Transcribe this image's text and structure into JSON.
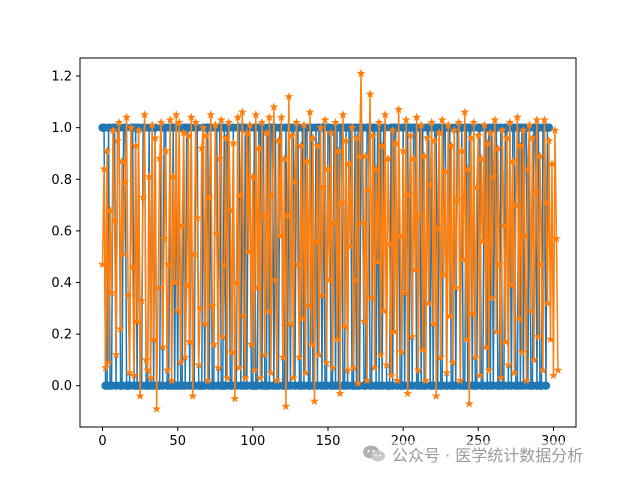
{
  "chart_data": {
    "type": "line",
    "title": "",
    "xlabel": "",
    "ylabel": "",
    "xlim": [
      -15,
      315
    ],
    "ylim": [
      -0.16,
      1.27
    ],
    "x_ticks": [
      0,
      50,
      100,
      150,
      200,
      250,
      300
    ],
    "y_ticks": [
      0.0,
      0.2,
      0.4,
      0.6,
      0.8,
      1.0,
      1.2
    ],
    "x_tick_labels": [
      "0",
      "50",
      "100",
      "150",
      "200",
      "250",
      "300"
    ],
    "y_tick_labels": [
      "0.0",
      "0.2",
      "0.4",
      "0.6",
      "0.8",
      "1.0",
      "1.2"
    ],
    "grid": false,
    "legend": "none",
    "series": [
      {
        "color": "#1f77b4",
        "marker": "circle",
        "values": [
          1,
          1,
          0,
          0,
          1,
          0,
          0,
          1,
          1,
          0,
          1,
          1,
          0,
          0,
          1,
          1,
          0,
          0,
          0,
          1,
          1,
          0,
          1,
          0,
          1,
          0,
          0,
          1,
          1,
          0,
          0,
          1,
          0,
          1,
          0,
          1,
          0,
          0,
          0,
          1,
          0,
          1,
          1,
          0,
          0,
          1,
          0,
          1,
          0,
          1,
          0,
          1,
          0,
          0,
          1,
          0,
          1,
          1,
          0,
          1,
          0,
          0,
          1,
          1,
          0,
          0,
          0,
          1,
          0,
          1,
          1,
          0,
          1,
          0,
          0,
          1,
          1,
          0,
          1,
          0,
          0,
          1,
          0,
          1,
          1,
          0,
          0,
          1,
          0,
          0,
          1,
          1,
          0,
          1,
          0,
          1,
          0,
          1,
          1,
          0,
          0,
          1,
          0,
          0,
          1,
          1,
          0,
          1,
          0,
          0,
          1,
          0,
          1,
          1,
          0,
          1,
          0,
          0,
          1,
          1,
          0,
          0,
          1,
          0,
          1,
          0,
          1,
          1,
          0,
          1,
          1,
          0,
          0,
          1,
          0,
          1,
          1,
          0,
          0,
          1,
          0,
          0,
          1,
          0,
          1,
          1,
          0,
          1,
          0,
          0,
          1,
          1,
          0,
          0,
          1,
          0,
          1,
          0,
          1,
          1,
          0,
          0,
          1,
          0,
          1,
          1,
          0,
          0,
          1,
          0,
          1,
          0,
          1,
          1,
          0,
          0,
          1,
          1,
          0,
          0,
          1,
          1,
          0,
          1,
          0,
          1,
          0,
          1,
          1,
          0,
          0,
          0,
          1,
          0,
          1,
          1,
          0,
          1,
          0,
          0,
          1,
          0,
          1,
          1,
          0,
          1,
          0,
          1,
          1,
          0,
          0,
          1,
          0,
          1,
          0,
          0,
          1,
          1,
          0,
          1,
          0,
          1,
          1,
          0,
          1,
          0,
          0,
          1,
          1,
          0,
          1,
          1,
          0,
          0,
          1,
          0,
          1,
          1,
          0,
          1,
          0,
          0,
          1,
          0,
          1,
          1,
          0,
          1,
          0,
          0,
          1,
          1,
          0,
          0,
          1,
          1,
          0,
          1,
          0,
          1,
          0,
          1,
          1,
          0,
          0,
          1,
          0,
          0,
          1,
          1,
          0,
          1,
          0,
          1,
          1,
          0,
          0,
          1,
          0,
          1,
          0,
          1,
          1,
          0,
          1,
          0,
          0,
          1,
          1,
          0,
          1,
          0,
          0,
          1,
          1,
          0,
          1,
          1
        ]
      },
      {
        "color": "#ff7f0e",
        "marker": "star",
        "values": [
          0.47,
          0.84,
          0.07,
          0.91,
          0.09,
          0.68,
          0.36,
          0.99,
          0.64,
          0.12,
          0.95,
          1.02,
          0.22,
          0.87,
          0.51,
          0.79,
          1.04,
          0.35,
          0.05,
          1.0,
          0.46,
          0.04,
          0.93,
          0.25,
          0.99,
          -0.04,
          0.33,
          0.73,
          1.05,
          0.1,
          0.06,
          0.81,
          0.03,
          1.01,
          0.18,
          0.96,
          -0.09,
          0.38,
          0.88,
          1.02,
          0.15,
          0.57,
          0.91,
          0.06,
          0.47,
          1.03,
          0.02,
          0.81,
          0.4,
          1.05,
          0.29,
          1.02,
          0.09,
          0.62,
          0.98,
          0.11,
          0.39,
          0.97,
          0.17,
          1.04,
          -0.04,
          0.51,
          1.02,
          0.65,
          0.08,
          0.3,
          0.92,
          1.0,
          0.24,
          0.97,
          0.02,
          0.73,
          1.05,
          0.31,
          0.16,
          1.01,
          0.59,
          0.07,
          0.88,
          1.03,
          0.19,
          0.47,
          0.96,
          0.03,
          1.02,
          0.68,
          0.13,
          0.94,
          -0.05,
          0.4,
          1.04,
          0.07,
          0.74,
          1.06,
          0.27,
          0.03,
          0.98,
          0.52,
          1.01,
          0.16,
          0.81,
          0.06,
          1.05,
          0.38,
          0.92,
          0.03,
          1.02,
          0.66,
          0.12,
          0.98,
          0.29,
          1.04,
          0.05,
          0.74,
          1.08,
          0.41,
          0.02,
          0.95,
          0.58,
          1.04,
          0.11,
          0.88,
          -0.08,
          0.66,
          1.12,
          0.24,
          0.97,
          0.03,
          0.79,
          1.02,
          0.47,
          0.11,
          0.93,
          0.26,
          1.01,
          0.05,
          0.87,
          0.31,
          1.06,
          0.16,
          0.96,
          -0.06,
          0.56,
          0.93,
          0.12,
          1.0,
          0.35,
          0.77,
          1.03,
          0.09,
          0.84,
          0.41,
          0.98,
          0.07,
          0.63,
          1.02,
          0.18,
          0.91,
          -0.03,
          0.71,
          1.05,
          0.23,
          0.95,
          0.06,
          0.86,
          0.54,
          1.0,
          0.07,
          0.41,
          0.96,
          0.01,
          0.89,
          1.21,
          0.63,
          0.25,
          0.89,
          0.02,
          0.76,
          1.13,
          0.34,
          0.97,
          0.07,
          0.84,
          0.48,
          1.02,
          0.12,
          0.93,
          0.29,
          1.05,
          0.08,
          0.88,
          0.55,
          0.04,
          0.99,
          0.21,
          0.94,
          0.02,
          1.07,
          0.58,
          0.13,
          0.91,
          0.36,
          1.03,
          -0.03,
          0.74,
          0.97,
          0.19,
          0.88,
          0.45,
          1.04,
          0.06,
          0.66,
          1.01,
          0.14,
          0.89,
          0.02,
          0.96,
          0.32,
          0.78,
          1.02,
          0.24,
          0.95,
          -0.04,
          0.61,
          0.98,
          0.11,
          1.03,
          0.43,
          0.83,
          0.05,
          1.01,
          0.27,
          0.93,
          0.09,
          0.99,
          0.38,
          0.72,
          1.02,
          0.02,
          0.91,
          0.49,
          1.06,
          0.18,
          0.84,
          -0.07,
          0.96,
          0.28,
          1.02,
          0.11,
          0.77,
          0.97,
          0.04,
          0.88,
          0.56,
          1.01,
          0.15,
          0.94,
          0.06,
          0.98,
          0.34,
          0.81,
          1.03,
          0.21,
          0.92,
          0.47,
          0.03,
          0.99,
          0.62,
          0.17,
          0.96,
          0.08,
          1.02,
          0.39,
          0.87,
          0.05,
          0.7,
          1.04,
          0.26,
          0.93,
          0.13,
          0.99,
          0.58,
          0.02,
          0.84,
          1.01,
          0.29,
          0.96,
          0.1,
          0.75,
          1.03,
          0.19,
          0.89,
          0.47,
          0.06,
          1.03,
          0.71,
          0.32,
          0.95,
          0.18,
          0.86,
          0.04,
          0.99,
          0.57,
          0.06
        ]
      }
    ]
  },
  "watermark": {
    "text": "公众号 · 医学统计数据分析"
  }
}
